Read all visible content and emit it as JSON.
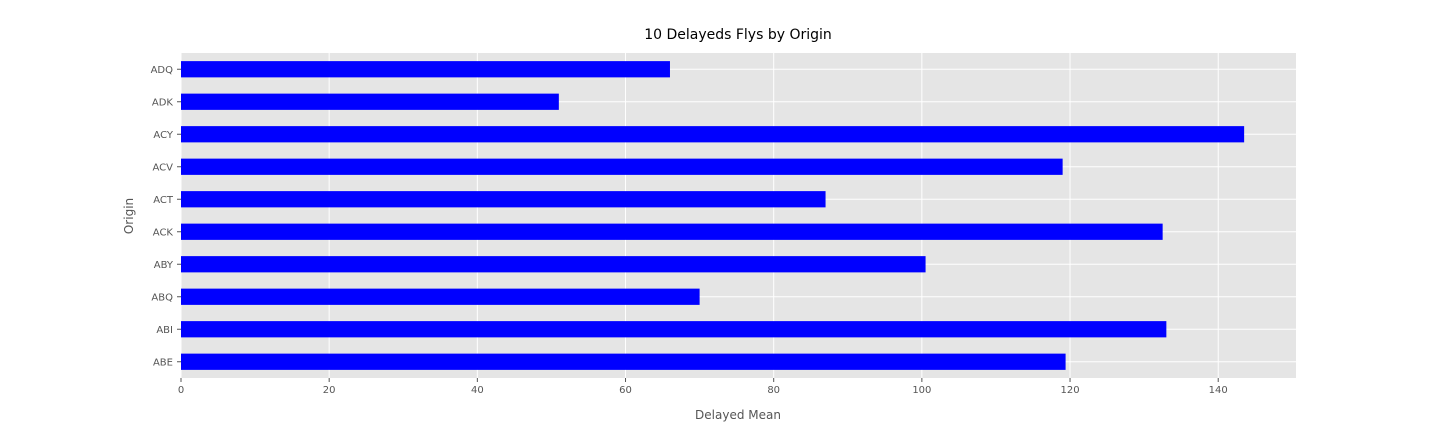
{
  "chart_data": {
    "type": "bar",
    "orientation": "horizontal",
    "title": "10 Delayeds Flys by Origin",
    "xlabel": "Delayed Mean",
    "ylabel": "Origin",
    "categories": [
      "ABE",
      "ABI",
      "ABQ",
      "ABY",
      "ACK",
      "ACT",
      "ACV",
      "ACY",
      "ADK",
      "ADQ"
    ],
    "values": [
      119.4,
      133.0,
      70.0,
      100.5,
      132.5,
      87.0,
      119.0,
      143.5,
      51.0,
      66.0
    ],
    "xlim": [
      0,
      150.5
    ],
    "xticks": [
      "0",
      "20",
      "40",
      "60",
      "80",
      "100",
      "120",
      "140"
    ],
    "grid": true,
    "legend": false,
    "colors": {
      "bar": "#0000ff",
      "plot_background": "#e5e5e5",
      "grid": "#ffffff"
    }
  }
}
